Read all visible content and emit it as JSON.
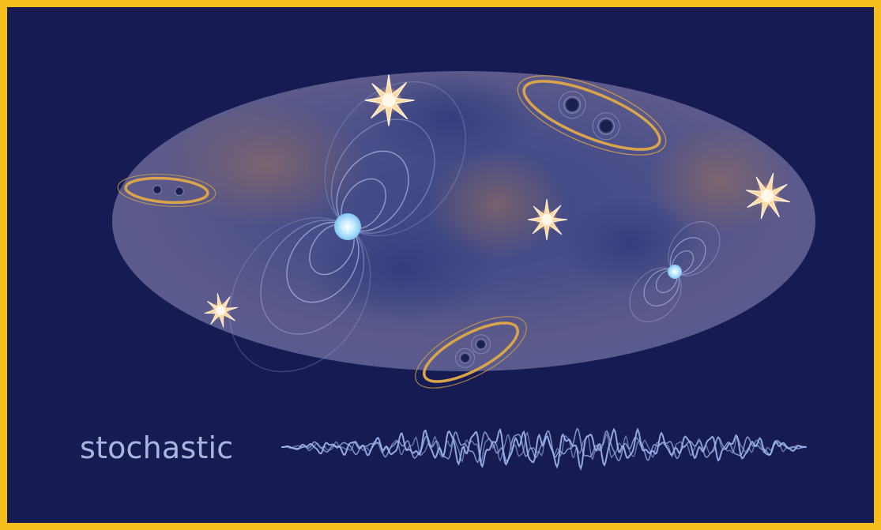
{
  "label": "stochastic",
  "colors": {
    "frame_border": "#f5bd1c",
    "background": "#171b54",
    "sky_map": "#3f4888",
    "orbit": "#d9a44a",
    "burst": "#ffc98a",
    "neutron_star": "#dff4ff",
    "waveform": "#9db8ee"
  },
  "icons": {
    "binary_systems": "binary-black-hole-icon",
    "bursts": "starburst-icon",
    "neutron_stars": "pulsar-icon"
  }
}
